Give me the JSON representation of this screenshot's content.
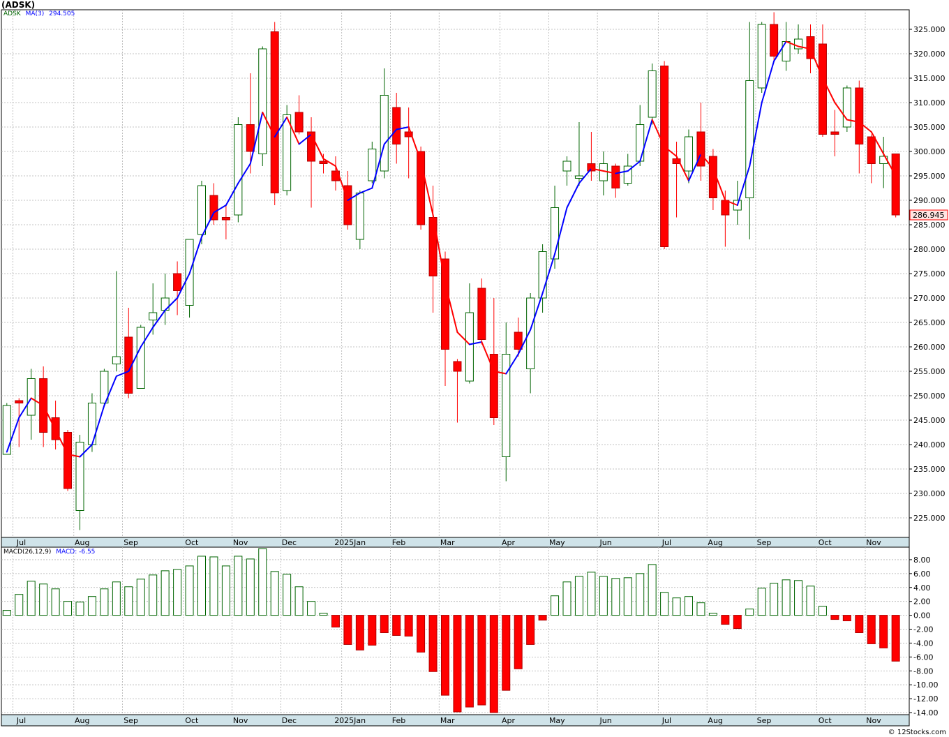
{
  "symbol_title": "(ADSK)",
  "price_legend": {
    "symbol": "ADSK",
    "ma_label": "MA(3)",
    "ma_value": "294.505"
  },
  "macd_legend": {
    "label": "MACD(26,12,9)",
    "value_label": "MACD: -6.55"
  },
  "last_price_label": "286.945",
  "footer": "© 12Stocks.com",
  "colors": {
    "up": "#006400",
    "down": "#ff0000",
    "ma_up": "#0000ff",
    "ma_down": "#ff0000",
    "grid": "#b0b0b0",
    "axis_bg": "#cfe3e9"
  },
  "chart_data": [
    {
      "type": "candlestick",
      "title": "(ADSK)",
      "ylim": [
        221,
        329
      ],
      "y_ticks": [
        225,
        230,
        235,
        240,
        245,
        250,
        255,
        260,
        265,
        270,
        275,
        280,
        285,
        290,
        295,
        300,
        305,
        310,
        315,
        320,
        325
      ],
      "x_month_labels": [
        {
          "label": "Jul",
          "index": 1
        },
        {
          "label": "Aug",
          "index": 6
        },
        {
          "label": "Sep",
          "index": 10
        },
        {
          "label": "Oct",
          "index": 15
        },
        {
          "label": "Nov",
          "index": 19
        },
        {
          "label": "Dec",
          "index": 23
        },
        {
          "label": "2025Jan",
          "index": 28
        },
        {
          "label": "Feb",
          "index": 32
        },
        {
          "label": "Mar",
          "index": 36
        },
        {
          "label": "Apr",
          "index": 41
        },
        {
          "label": "May",
          "index": 45
        },
        {
          "label": "Jun",
          "index": 49
        },
        {
          "label": "Jul",
          "index": 54
        },
        {
          "label": "Aug",
          "index": 58
        },
        {
          "label": "Sep",
          "index": 62
        },
        {
          "label": "Oct",
          "index": 67
        },
        {
          "label": "Nov",
          "index": 71
        }
      ],
      "grid": true,
      "candles": [
        {
          "o": 238.0,
          "h": 248.5,
          "l": 238.0,
          "c": 248.0
        },
        {
          "o": 249.0,
          "h": 249.5,
          "l": 239.5,
          "c": 248.5
        },
        {
          "o": 246.0,
          "h": 255.5,
          "l": 241.0,
          "c": 253.5
        },
        {
          "o": 253.5,
          "h": 256.0,
          "l": 239.5,
          "c": 242.5
        },
        {
          "o": 245.5,
          "h": 249.0,
          "l": 239.0,
          "c": 241.0
        },
        {
          "o": 242.5,
          "h": 243.0,
          "l": 230.5,
          "c": 231.0
        },
        {
          "o": 226.5,
          "h": 242.0,
          "l": 222.5,
          "c": 240.5
        },
        {
          "o": 240.0,
          "h": 250.5,
          "l": 238.5,
          "c": 248.5
        },
        {
          "o": 248.5,
          "h": 255.5,
          "l": 248.0,
          "c": 255.0
        },
        {
          "o": 256.5,
          "h": 275.5,
          "l": 255.0,
          "c": 258.0
        },
        {
          "o": 262.0,
          "h": 268.0,
          "l": 249.5,
          "c": 250.5
        },
        {
          "o": 251.5,
          "h": 264.5,
          "l": 251.5,
          "c": 264.0
        },
        {
          "o": 265.5,
          "h": 273.0,
          "l": 262.5,
          "c": 267.0
        },
        {
          "o": 267.5,
          "h": 275.0,
          "l": 264.5,
          "c": 270.0
        },
        {
          "o": 275.0,
          "h": 277.5,
          "l": 266.5,
          "c": 271.5
        },
        {
          "o": 268.5,
          "h": 282.0,
          "l": 266.0,
          "c": 282.0
        },
        {
          "o": 283.0,
          "h": 294.0,
          "l": 281.0,
          "c": 293.0
        },
        {
          "o": 291.0,
          "h": 293.5,
          "l": 285.0,
          "c": 286.0
        },
        {
          "o": 286.5,
          "h": 289.0,
          "l": 282.0,
          "c": 286.0
        },
        {
          "o": 287.0,
          "h": 307.0,
          "l": 285.5,
          "c": 305.5
        },
        {
          "o": 305.5,
          "h": 316.0,
          "l": 295.5,
          "c": 300.0
        },
        {
          "o": 299.5,
          "h": 321.5,
          "l": 297.0,
          "c": 321.0
        },
        {
          "o": 324.5,
          "h": 326.5,
          "l": 289.0,
          "c": 291.5
        },
        {
          "o": 292.0,
          "h": 309.5,
          "l": 291.0,
          "c": 307.5
        },
        {
          "o": 308.0,
          "h": 311.5,
          "l": 303.5,
          "c": 304.0
        },
        {
          "o": 304.0,
          "h": 307.0,
          "l": 288.5,
          "c": 298.0
        },
        {
          "o": 298.0,
          "h": 299.5,
          "l": 295.5,
          "c": 297.5
        },
        {
          "o": 296.0,
          "h": 299.0,
          "l": 292.0,
          "c": 294.0
        },
        {
          "o": 293.0,
          "h": 296.0,
          "l": 284.0,
          "c": 285.0
        },
        {
          "o": 282.0,
          "h": 292.0,
          "l": 280.0,
          "c": 291.5
        },
        {
          "o": 294.0,
          "h": 302.0,
          "l": 293.5,
          "c": 300.5
        },
        {
          "o": 296.0,
          "h": 317.0,
          "l": 294.5,
          "c": 311.5
        },
        {
          "o": 309.0,
          "h": 312.0,
          "l": 297.5,
          "c": 301.5
        },
        {
          "o": 304.0,
          "h": 309.0,
          "l": 294.5,
          "c": 303.0
        },
        {
          "o": 300.0,
          "h": 301.0,
          "l": 284.0,
          "c": 285.0
        },
        {
          "o": 286.5,
          "h": 293.0,
          "l": 267.0,
          "c": 274.5
        },
        {
          "o": 278.0,
          "h": 279.5,
          "l": 252.0,
          "c": 259.5
        },
        {
          "o": 257.0,
          "h": 257.5,
          "l": 244.5,
          "c": 255.0
        },
        {
          "o": 253.0,
          "h": 273.0,
          "l": 252.5,
          "c": 267.0
        },
        {
          "o": 272.0,
          "h": 274.0,
          "l": 260.5,
          "c": 261.5
        },
        {
          "o": 258.5,
          "h": 270.0,
          "l": 244.0,
          "c": 245.5
        },
        {
          "o": 237.5,
          "h": 265.0,
          "l": 232.5,
          "c": 258.5
        },
        {
          "o": 263.0,
          "h": 266.0,
          "l": 258.0,
          "c": 259.5
        },
        {
          "o": 255.5,
          "h": 271.0,
          "l": 250.5,
          "c": 270.0
        },
        {
          "o": 270.0,
          "h": 281.0,
          "l": 267.0,
          "c": 279.5
        },
        {
          "o": 278.0,
          "h": 293.0,
          "l": 276.0,
          "c": 288.5
        },
        {
          "o": 296.0,
          "h": 299.0,
          "l": 293.0,
          "c": 298.0
        },
        {
          "o": 294.5,
          "h": 306.0,
          "l": 293.0,
          "c": 295.0
        },
        {
          "o": 297.5,
          "h": 304.0,
          "l": 294.0,
          "c": 296.0
        },
        {
          "o": 294.0,
          "h": 300.0,
          "l": 291.0,
          "c": 297.5
        },
        {
          "o": 297.0,
          "h": 297.5,
          "l": 290.5,
          "c": 292.5
        },
        {
          "o": 293.5,
          "h": 299.5,
          "l": 293.0,
          "c": 297.0
        },
        {
          "o": 298.0,
          "h": 309.5,
          "l": 297.0,
          "c": 305.5
        },
        {
          "o": 307.0,
          "h": 318.0,
          "l": 305.5,
          "c": 316.5
        },
        {
          "o": 317.5,
          "h": 318.5,
          "l": 280.0,
          "c": 280.5
        },
        {
          "o": 298.5,
          "h": 302.0,
          "l": 286.5,
          "c": 297.5
        },
        {
          "o": 296.0,
          "h": 304.5,
          "l": 293.5,
          "c": 303.0
        },
        {
          "o": 304.0,
          "h": 310.0,
          "l": 294.0,
          "c": 297.0
        },
        {
          "o": 299.0,
          "h": 300.5,
          "l": 288.0,
          "c": 290.5
        },
        {
          "o": 290.0,
          "h": 292.0,
          "l": 280.5,
          "c": 287.0
        },
        {
          "o": 288.0,
          "h": 294.0,
          "l": 285.0,
          "c": 290.0
        },
        {
          "o": 290.5,
          "h": 326.5,
          "l": 282.0,
          "c": 314.5
        },
        {
          "o": 313.0,
          "h": 326.5,
          "l": 312.0,
          "c": 326.0
        },
        {
          "o": 326.0,
          "h": 328.5,
          "l": 318.5,
          "c": 319.5
        },
        {
          "o": 318.5,
          "h": 326.5,
          "l": 316.5,
          "c": 322.5
        },
        {
          "o": 321.0,
          "h": 326.0,
          "l": 320.0,
          "c": 323.0
        },
        {
          "o": 323.5,
          "h": 326.0,
          "l": 316.0,
          "c": 319.0
        },
        {
          "o": 322.0,
          "h": 326.0,
          "l": 303.0,
          "c": 303.5
        },
        {
          "o": 304.0,
          "h": 308.5,
          "l": 299.0,
          "c": 303.5
        },
        {
          "o": 305.0,
          "h": 313.5,
          "l": 304.0,
          "c": 313.0
        },
        {
          "o": 313.0,
          "h": 314.5,
          "l": 295.5,
          "c": 301.5
        },
        {
          "o": 303.0,
          "h": 303.5,
          "l": 293.5,
          "c": 297.5
        },
        {
          "o": 297.5,
          "h": 303.0,
          "l": 292.5,
          "c": 299.0
        },
        {
          "o": 299.5,
          "h": 299.5,
          "l": 286.5,
          "c": 287.0
        }
      ],
      "ma_series": {
        "name": "MA(3)",
        "values": [
          238.5,
          245.5,
          249.5,
          248.0,
          243.0,
          238.0,
          237.5,
          240.0,
          248.0,
          254.0,
          255.0,
          260.0,
          264.0,
          267.5,
          270.0,
          275.0,
          282.5,
          287.5,
          289.0,
          293.5,
          297.5,
          308.0,
          303.0,
          307.0,
          301.5,
          303.5,
          298.5,
          297.0,
          290.0,
          291.5,
          292.5,
          301.5,
          304.5,
          305.0,
          298.0,
          287.0,
          273.0,
          263.0,
          260.5,
          261.0,
          255.0,
          254.5,
          258.5,
          263.5,
          271.0,
          279.0,
          288.5,
          293.5,
          296.5,
          296.0,
          295.5,
          296.0,
          298.0,
          306.5,
          301.0,
          299.0,
          294.0,
          299.5,
          296.5,
          290.0,
          289.0,
          297.0,
          310.0,
          318.5,
          322.5,
          321.5,
          321.0,
          315.0,
          310.0,
          306.5,
          306.0,
          304.0,
          299.5,
          295.0
        ]
      }
    },
    {
      "type": "bar",
      "title": "MACD(26,12,9)",
      "ylim": [
        -14.3,
        9.8
      ],
      "y_ticks": [
        8,
        6,
        4,
        2,
        0,
        -2,
        -4,
        -6,
        -8,
        -10,
        -12,
        -14
      ],
      "y_tick_labels": [
        "8.00",
        "6.00",
        "4.00",
        "2.00",
        "0.00",
        "-2.00",
        "-4.00",
        "-6.00",
        "-8.00",
        "-10.00",
        "-12.00",
        "-14.00"
      ],
      "series": [
        {
          "values": [
            0.7,
            3.0,
            4.9,
            4.5,
            3.8,
            2.0,
            1.9,
            2.7,
            3.8,
            4.8,
            4.1,
            5.2,
            5.8,
            6.4,
            6.6,
            7.1,
            8.5,
            8.4,
            7.1,
            8.5,
            8.1,
            9.6,
            6.3,
            5.9,
            4.1,
            2.0,
            0.3,
            -1.7,
            -4.2,
            -5.0,
            -4.3,
            -2.5,
            -2.9,
            -3.0,
            -5.3,
            -8.1,
            -11.5,
            -13.9,
            -13.2,
            -12.9,
            -14.0,
            -10.8,
            -7.7,
            -4.2,
            -0.7,
            2.8,
            4.8,
            5.6,
            6.2,
            5.6,
            5.3,
            5.4,
            6.0,
            7.3,
            3.3,
            2.5,
            2.7,
            1.8,
            0.3,
            -1.3,
            -1.9,
            0.9,
            3.9,
            4.6,
            5.1,
            5.0,
            4.2,
            1.3,
            -0.6,
            -0.8,
            -2.5,
            -4.1,
            -4.7,
            -6.6
          ]
        }
      ],
      "grid": true
    }
  ]
}
